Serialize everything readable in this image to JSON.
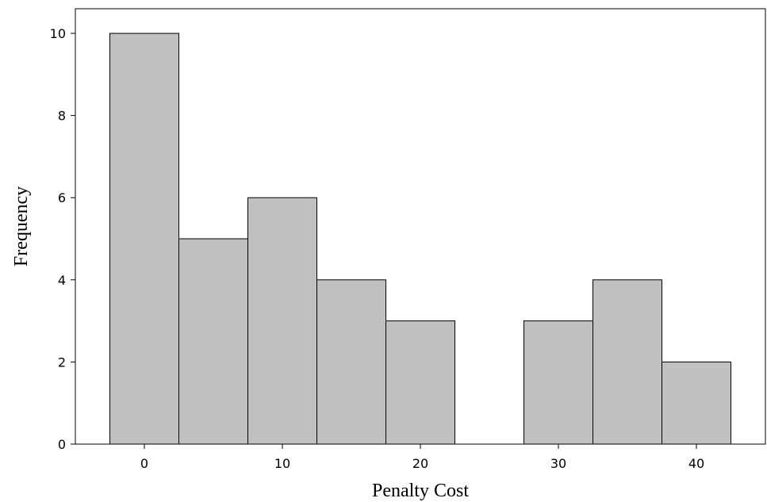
{
  "chart_data": {
    "type": "bar",
    "title": "",
    "xlabel": "Penalty Cost",
    "ylabel": "Frequency",
    "bin_width": 5,
    "bins": [
      {
        "center": 0,
        "count": 10
      },
      {
        "center": 5,
        "count": 5
      },
      {
        "center": 10,
        "count": 6
      },
      {
        "center": 15,
        "count": 4
      },
      {
        "center": 20,
        "count": 3
      },
      {
        "center": 25,
        "count": 0
      },
      {
        "center": 30,
        "count": 3
      },
      {
        "center": 35,
        "count": 4
      },
      {
        "center": 40,
        "count": 2
      }
    ],
    "xlim": [
      -5,
      45
    ],
    "ylim": [
      0,
      10.6
    ],
    "x_ticks": [
      0,
      10,
      20,
      30,
      40
    ],
    "y_ticks": [
      0,
      2,
      4,
      6,
      8,
      10
    ],
    "grid": false,
    "colors": {
      "bar_fill": "#c0c0c0",
      "bar_edge": "#000000"
    }
  }
}
